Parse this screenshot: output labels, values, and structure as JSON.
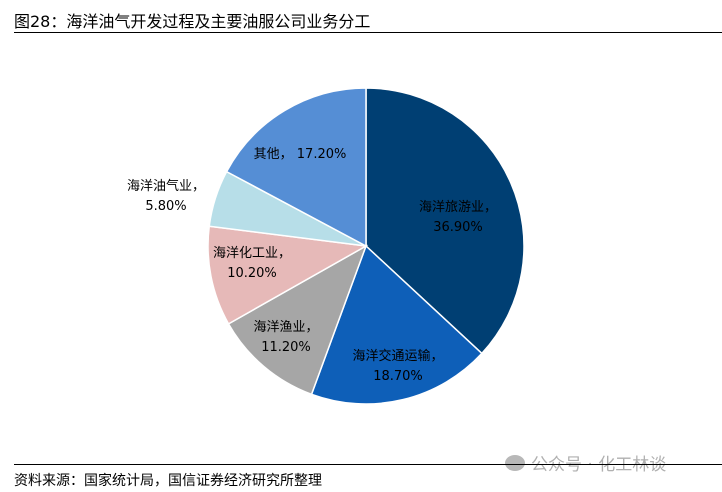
{
  "title": "图28：海洋油气开发过程及主要油服公司业务分工",
  "source": "资料来源：国家统计局，国信证券经济研究所整理",
  "watermark": "公众号 · 化工林谈",
  "chart_data": {
    "type": "pie",
    "start": "12 o'clock, clockwise",
    "slices": [
      {
        "name": "海洋旅游业",
        "value": 36.9,
        "label": "36.90%",
        "color": "#003f73"
      },
      {
        "name": "海洋交通运输",
        "value": 18.7,
        "label": "18.70%",
        "color": "#0e5fb8"
      },
      {
        "name": "海洋渔业",
        "value": 11.2,
        "label": "11.20%",
        "color": "#a6a6a6"
      },
      {
        "name": "海洋化工业",
        "value": 10.2,
        "label": "10.20%",
        "color": "#e6b9b8"
      },
      {
        "name": "海洋油气业",
        "value": 5.8,
        "label": "5.80%",
        "color": "#b7dee8"
      },
      {
        "name": "其他",
        "value": 17.2,
        "label": "17.20%",
        "color": "#558ed5"
      }
    ]
  }
}
